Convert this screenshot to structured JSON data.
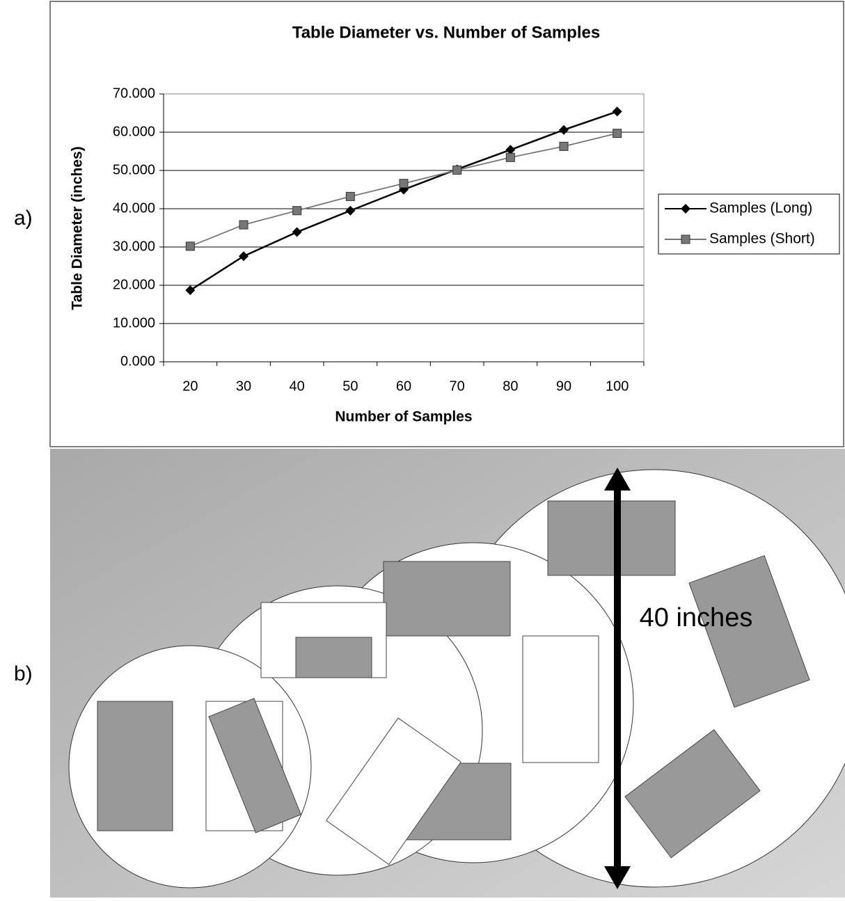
{
  "panel_labels": [
    "a)",
    "b)"
  ],
  "chart_data": {
    "type": "line",
    "title": "Table Diameter vs. Number of Samples",
    "x_label": "Number of Samples",
    "y_label": "Table Diameter (inches)",
    "categories": [
      "20",
      "30",
      "40",
      "50",
      "60",
      "70",
      "80",
      "90",
      "100"
    ],
    "series": [
      {
        "name": "Samples (Long)",
        "color": "#000000",
        "marker": "diamond",
        "values": [
          18.7,
          27.6,
          33.9,
          39.5,
          45.0,
          50.3,
          55.4,
          60.6,
          65.4
        ]
      },
      {
        "name": "Samples (Short)",
        "color": "#777777",
        "marker": "square",
        "values": [
          30.2,
          35.8,
          39.5,
          43.2,
          46.6,
          50.1,
          53.4,
          56.3,
          59.7
        ]
      }
    ],
    "ylim": [
      0,
      70
    ],
    "yticks": [
      {
        "value": 0,
        "label": "0.000"
      },
      {
        "value": 10,
        "label": "10.000"
      },
      {
        "value": 20,
        "label": "20.000"
      },
      {
        "value": 30,
        "label": "30.000"
      },
      {
        "value": 40,
        "label": "40.000"
      },
      {
        "value": 50,
        "label": "50.000"
      },
      {
        "value": 60,
        "label": "60.000"
      },
      {
        "value": 70,
        "label": "70.000"
      }
    ],
    "grid": true,
    "legend": "right"
  },
  "diagram": {
    "annotation": "40 inches"
  }
}
